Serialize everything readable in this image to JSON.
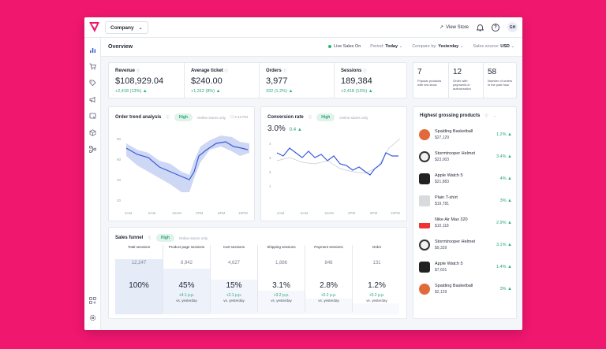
{
  "header": {
    "company": "Company",
    "view_store": "View Store",
    "avatar": "GH"
  },
  "overview": {
    "title": "Overview",
    "live": "Live Sales On",
    "period_label": "Period:",
    "period_value": "Today",
    "compare_label": "Compare by:",
    "compare_value": "Yesterday",
    "source_label": "Sales source:",
    "source_value": "USD"
  },
  "metrics": [
    {
      "label": "Revenue",
      "value": "$108,929.04",
      "change": "+2,418 (13%)"
    },
    {
      "label": "Average ticket",
      "value": "$240.00",
      "change": "+1,312 (8%)"
    },
    {
      "label": "Orders",
      "value": "3,977",
      "change": "332 (1.2%)"
    },
    {
      "label": "Sessions",
      "value": "189,384",
      "change": "+2,418 (13%)"
    }
  ],
  "small_metrics": [
    {
      "value": "7",
      "desc": "Popular products with low stock"
    },
    {
      "value": "12",
      "desc": "Order with payments in authorization"
    },
    {
      "value": "58",
      "desc": "Number of orders in the past hour"
    }
  ],
  "order_trend": {
    "title": "Order trend analysis",
    "pill": "High",
    "muted": "Online stores only",
    "time": "2:12 PM",
    "y_ticks": [
      "80",
      "60",
      "40",
      "20"
    ],
    "x_ticks": [
      "2AM",
      "6AM",
      "10AM",
      "2PM",
      "6PM",
      "10PM"
    ],
    "colors": {
      "line": "#3a5bd9",
      "band": "#c9d3f3"
    }
  },
  "conversion": {
    "title": "Conversion rate",
    "value": "3.0%",
    "change": "0.4",
    "pill": "High",
    "muted": "Online stores only",
    "y_ticks": [
      "4",
      "3",
      "2",
      "1"
    ],
    "x_ticks": [
      "2AM",
      "6AM",
      "10AM",
      "2PM",
      "6PM",
      "10PM"
    ]
  },
  "funnel": {
    "title": "Sales funnel",
    "pill": "High",
    "muted": "Online stores only",
    "columns": [
      {
        "header": "Total sessions",
        "count": "12,247",
        "pct": "100%",
        "d1": "",
        "d2": ""
      },
      {
        "header": "Product page sessions",
        "count": "8,942",
        "pct": "45%",
        "d1": "+4.1 p.p.",
        "d2": "vs. yesterday"
      },
      {
        "header": "Cart sessions",
        "count": "4,627",
        "pct": "15%",
        "d1": "+2.1 p.p.",
        "d2": "vs. yesterday"
      },
      {
        "header": "Shipping sessions",
        "count": "1,886",
        "pct": "3.1%",
        "d1": "+3.2 p.p.",
        "d2": "vs. yesterday"
      },
      {
        "header": "Payment sessions",
        "count": "848",
        "pct": "2.8%",
        "d1": "+0.2 p.p.",
        "d2": "vs. yesterday"
      },
      {
        "header": "Order",
        "count": "131",
        "pct": "1.2%",
        "d1": "+0.2 p.p.",
        "d2": "vs. yesterday"
      }
    ]
  },
  "products": {
    "title": "Highest grossing products",
    "items": [
      {
        "name": "Spalding Basketball",
        "price": "$27,129",
        "pct": "1.2%",
        "thumb": "basketball"
      },
      {
        "name": "Stormtrooper Helmet",
        "price": "$23,003",
        "pct": "3.4%",
        "thumb": "helmet"
      },
      {
        "name": "Apple Watch 5",
        "price": "$21,883",
        "pct": "4%",
        "thumb": "watch"
      },
      {
        "name": "Plain T-shirt",
        "price": "$19,781",
        "pct": "3%",
        "thumb": "tshirt"
      },
      {
        "name": "Nike Air Max 320",
        "price": "$10,118",
        "pct": "2.9%",
        "thumb": "shoe"
      },
      {
        "name": "Stormtrooper Helmet",
        "price": "$9,329",
        "pct": "3.1%",
        "thumb": "helmet"
      },
      {
        "name": "Apple Watch 5",
        "price": "$7,601",
        "pct": "1.4%",
        "thumb": "watch"
      },
      {
        "name": "Spalding Basketball",
        "price": "$2,129",
        "pct": "3%",
        "thumb": "basketball"
      }
    ]
  }
}
